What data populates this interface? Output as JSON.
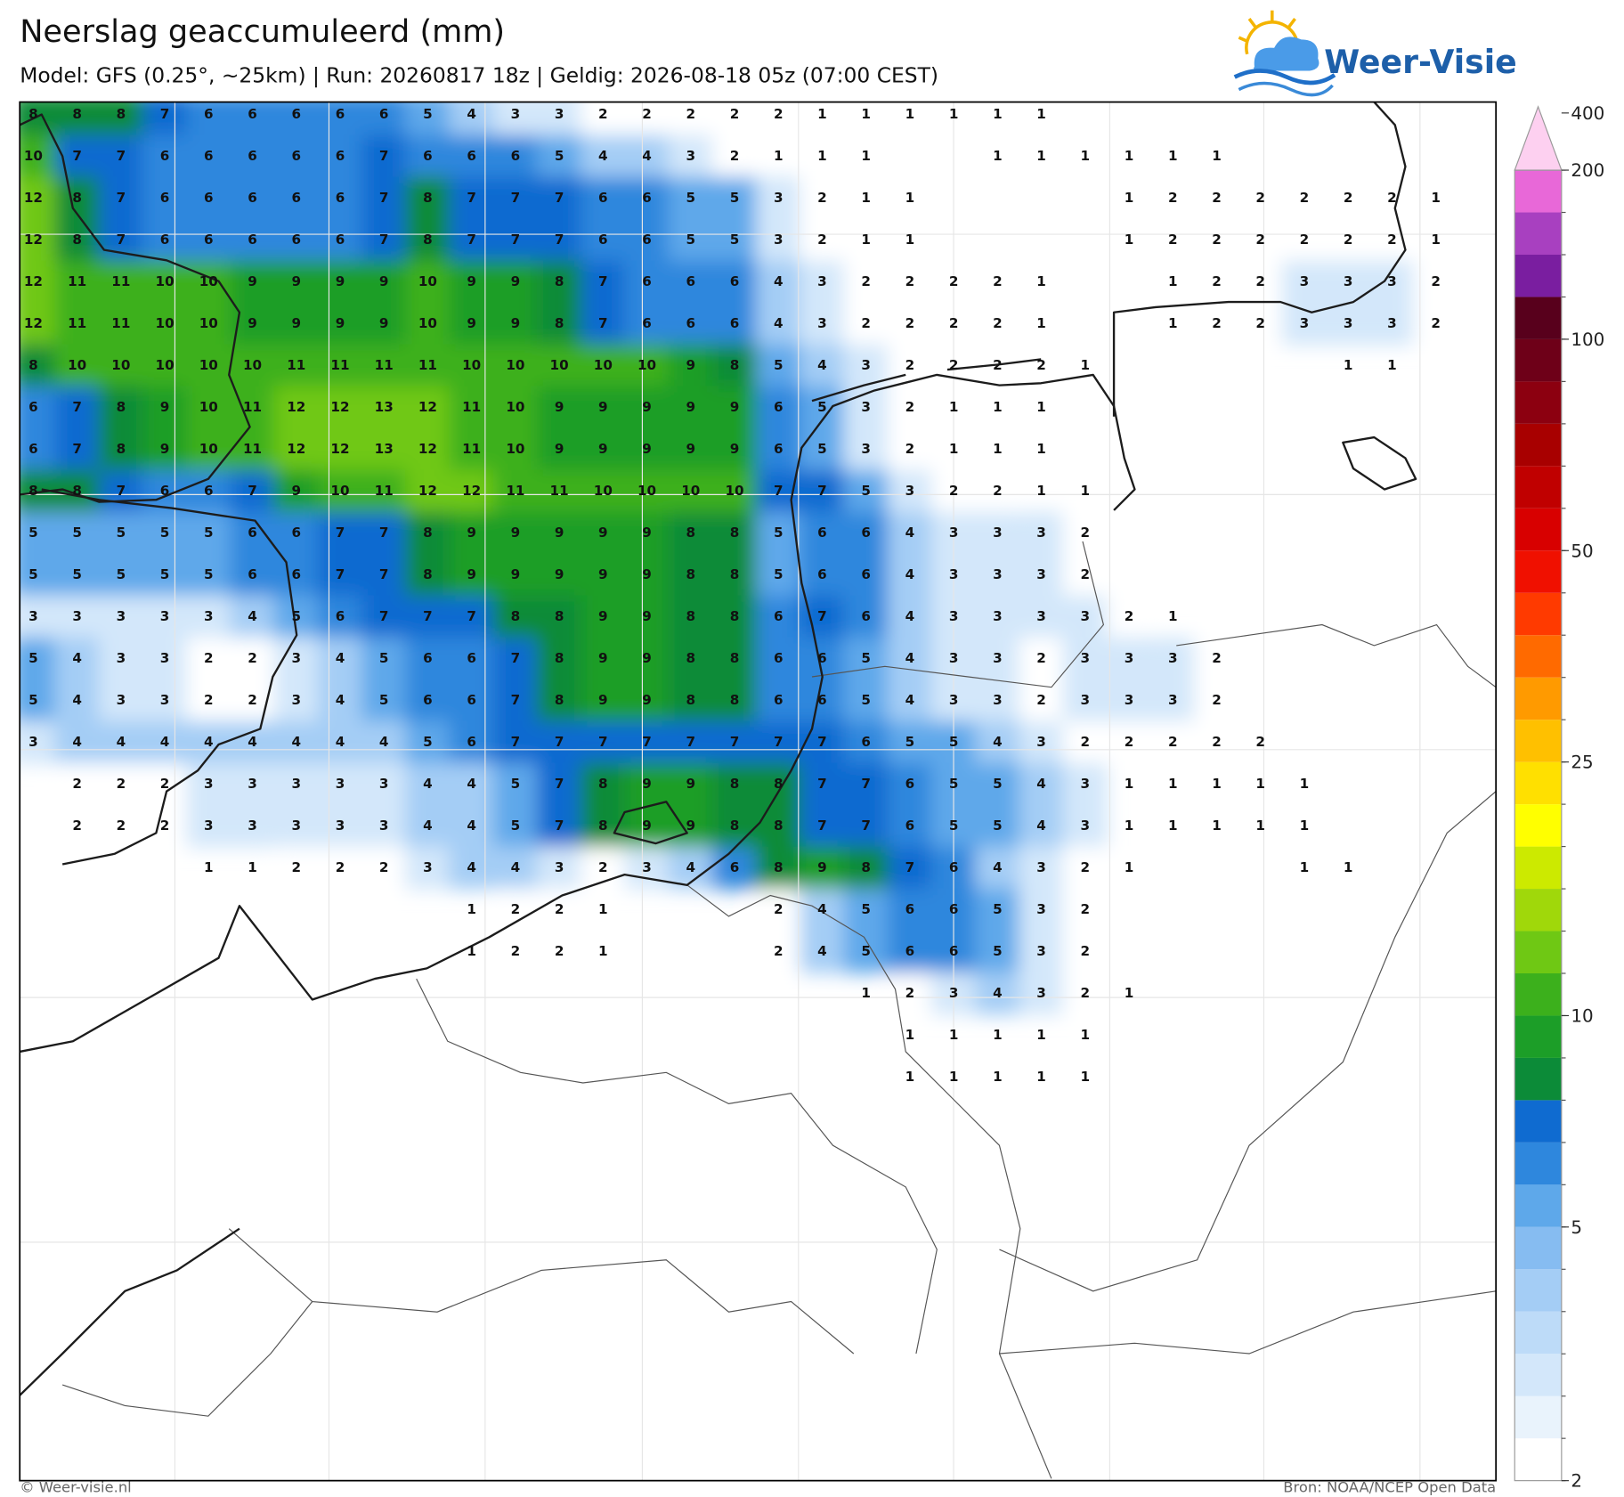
{
  "header": {
    "title": "Neerslag geaccumuleerd (mm)",
    "subtitle": "Model: GFS (0.25°, ~25km)  |  Run: 20260817 18z  |  Geldig: 2026-08-18 05z (07:00 CEST)"
  },
  "logo": {
    "text": "Weer-Visie"
  },
  "map": {
    "grid_values": [
      [
        8,
        8,
        8,
        7,
        6,
        6,
        6,
        6,
        6,
        5,
        4,
        3,
        3,
        2,
        2,
        2,
        2,
        2,
        1,
        1,
        1,
        1,
        1,
        1,
        null,
        null,
        null,
        null,
        null,
        null,
        null,
        null,
        null
      ],
      [
        10,
        7,
        7,
        6,
        6,
        6,
        6,
        6,
        7,
        6,
        6,
        6,
        5,
        4,
        4,
        3,
        2,
        1,
        1,
        1,
        null,
        null,
        1,
        1,
        1,
        1,
        1,
        1,
        null,
        null,
        null,
        null,
        null
      ],
      [
        12,
        8,
        7,
        6,
        6,
        6,
        6,
        6,
        7,
        8,
        7,
        7,
        7,
        6,
        6,
        5,
        5,
        3,
        2,
        1,
        1,
        null,
        null,
        null,
        null,
        1,
        2,
        2,
        2,
        2,
        2,
        2,
        1
      ],
      [
        12,
        8,
        7,
        6,
        6,
        6,
        6,
        6,
        7,
        8,
        7,
        7,
        7,
        6,
        6,
        5,
        5,
        3,
        2,
        1,
        1,
        null,
        null,
        null,
        null,
        1,
        2,
        2,
        2,
        2,
        2,
        2,
        1
      ],
      [
        12,
        11,
        11,
        10,
        10,
        9,
        9,
        9,
        9,
        10,
        9,
        9,
        8,
        7,
        6,
        6,
        6,
        4,
        3,
        2,
        2,
        2,
        2,
        1,
        null,
        null,
        1,
        2,
        2,
        3,
        3,
        3,
        2
      ],
      [
        12,
        11,
        11,
        10,
        10,
        9,
        9,
        9,
        9,
        10,
        9,
        9,
        8,
        7,
        6,
        6,
        6,
        4,
        3,
        2,
        2,
        2,
        2,
        1,
        null,
        null,
        1,
        2,
        2,
        3,
        3,
        3,
        2
      ],
      [
        8,
        10,
        10,
        10,
        10,
        10,
        11,
        11,
        11,
        11,
        10,
        10,
        10,
        10,
        10,
        9,
        8,
        5,
        4,
        3,
        2,
        2,
        2,
        2,
        1,
        null,
        null,
        null,
        null,
        null,
        1,
        1,
        null
      ],
      [
        6,
        7,
        8,
        9,
        10,
        11,
        12,
        12,
        13,
        12,
        11,
        10,
        9,
        9,
        9,
        9,
        9,
        6,
        5,
        3,
        2,
        1,
        1,
        1,
        null,
        null,
        null,
        null,
        null,
        null,
        null,
        null,
        null
      ],
      [
        6,
        7,
        8,
        9,
        10,
        11,
        12,
        12,
        13,
        12,
        11,
        10,
        9,
        9,
        9,
        9,
        9,
        6,
        5,
        3,
        2,
        1,
        1,
        1,
        null,
        null,
        null,
        null,
        null,
        null,
        null,
        null,
        null
      ],
      [
        8,
        8,
        7,
        6,
        6,
        7,
        9,
        10,
        11,
        12,
        12,
        11,
        11,
        10,
        10,
        10,
        10,
        7,
        7,
        5,
        3,
        2,
        2,
        1,
        1,
        null,
        null,
        null,
        null,
        null,
        null,
        null,
        null
      ],
      [
        5,
        5,
        5,
        5,
        5,
        6,
        6,
        7,
        7,
        8,
        9,
        9,
        9,
        9,
        9,
        8,
        8,
        5,
        6,
        6,
        4,
        3,
        3,
        3,
        2,
        null,
        null,
        null,
        null,
        null,
        null,
        null,
        null
      ],
      [
        5,
        5,
        5,
        5,
        5,
        6,
        6,
        7,
        7,
        8,
        9,
        9,
        9,
        9,
        9,
        8,
        8,
        5,
        6,
        6,
        4,
        3,
        3,
        3,
        2,
        null,
        null,
        null,
        null,
        null,
        null,
        null,
        null
      ],
      [
        3,
        3,
        3,
        3,
        3,
        4,
        5,
        6,
        7,
        7,
        7,
        8,
        8,
        9,
        9,
        8,
        8,
        6,
        7,
        6,
        4,
        3,
        3,
        3,
        3,
        2,
        1,
        null,
        null,
        null,
        null,
        null,
        null
      ],
      [
        5,
        4,
        3,
        3,
        2,
        2,
        3,
        4,
        5,
        6,
        6,
        7,
        8,
        9,
        9,
        8,
        8,
        6,
        6,
        5,
        4,
        3,
        3,
        2,
        3,
        3,
        3,
        2,
        null,
        null,
        null,
        null,
        null
      ],
      [
        5,
        4,
        3,
        3,
        2,
        2,
        3,
        4,
        5,
        6,
        6,
        7,
        8,
        9,
        9,
        8,
        8,
        6,
        6,
        5,
        4,
        3,
        3,
        2,
        3,
        3,
        3,
        2,
        null,
        null,
        null,
        null,
        null
      ],
      [
        3,
        4,
        4,
        4,
        4,
        4,
        4,
        4,
        4,
        5,
        6,
        7,
        7,
        7,
        7,
        7,
        7,
        7,
        7,
        6,
        5,
        5,
        4,
        3,
        2,
        2,
        2,
        2,
        2,
        null,
        null,
        null,
        null
      ],
      [
        null,
        2,
        2,
        2,
        3,
        3,
        3,
        3,
        3,
        4,
        4,
        5,
        7,
        8,
        9,
        9,
        8,
        8,
        7,
        7,
        6,
        5,
        5,
        4,
        3,
        1,
        1,
        1,
        1,
        1,
        null,
        null,
        null
      ],
      [
        null,
        2,
        2,
        2,
        3,
        3,
        3,
        3,
        3,
        4,
        4,
        5,
        7,
        8,
        9,
        9,
        8,
        8,
        7,
        7,
        6,
        5,
        5,
        4,
        3,
        1,
        1,
        1,
        1,
        1,
        null,
        null,
        null
      ],
      [
        null,
        null,
        null,
        null,
        1,
        1,
        2,
        2,
        2,
        3,
        4,
        4,
        3,
        2,
        3,
        4,
        6,
        8,
        9,
        8,
        7,
        6,
        4,
        3,
        2,
        1,
        null,
        null,
        null,
        1,
        1,
        null,
        null
      ],
      [
        null,
        null,
        null,
        null,
        null,
        null,
        null,
        null,
        null,
        null,
        1,
        2,
        2,
        1,
        null,
        null,
        null,
        2,
        4,
        5,
        6,
        6,
        5,
        3,
        2,
        null,
        null,
        null,
        null,
        null,
        null,
        null,
        null
      ],
      [
        null,
        null,
        null,
        null,
        null,
        null,
        null,
        null,
        null,
        null,
        1,
        2,
        2,
        1,
        null,
        null,
        null,
        2,
        4,
        5,
        6,
        6,
        5,
        3,
        2,
        null,
        null,
        null,
        null,
        null,
        null,
        null,
        null
      ],
      [
        null,
        null,
        null,
        null,
        null,
        null,
        null,
        null,
        null,
        null,
        null,
        null,
        null,
        null,
        null,
        null,
        null,
        null,
        null,
        1,
        2,
        3,
        4,
        3,
        2,
        1,
        null,
        null,
        null,
        null,
        null,
        null,
        null
      ],
      [
        null,
        null,
        null,
        null,
        null,
        null,
        null,
        null,
        null,
        null,
        null,
        null,
        null,
        null,
        null,
        null,
        null,
        null,
        null,
        null,
        1,
        1,
        1,
        1,
        1,
        null,
        null,
        null,
        null,
        null,
        null,
        null,
        null
      ],
      [
        null,
        null,
        null,
        null,
        null,
        null,
        null,
        null,
        null,
        null,
        null,
        null,
        null,
        null,
        null,
        null,
        null,
        null,
        null,
        null,
        1,
        1,
        1,
        1,
        1,
        null,
        null,
        null,
        null,
        null,
        null,
        null,
        null
      ]
    ]
  },
  "colorbar": {
    "levels": [
      2,
      2.5,
      3,
      3.5,
      4,
      4.5,
      5,
      6,
      7,
      8,
      9,
      10,
      12,
      14,
      16,
      18,
      20,
      25,
      30,
      35,
      40,
      45,
      50,
      60,
      70,
      80,
      90,
      100,
      125,
      150,
      175,
      200,
      400
    ],
    "colors": [
      "#ffffff",
      "#e9f3fc",
      "#d3e7fa",
      "#bddbf8",
      "#a4cdf5",
      "#86bcf1",
      "#5ea8ea",
      "#2e87dd",
      "#0f6bd0",
      "#0c8b38",
      "#1c9e28",
      "#3cb01c",
      "#6fc814",
      "#a0d80a",
      "#ccea00",
      "#ffff00",
      "#ffe000",
      "#ffc000",
      "#ff9a00",
      "#ff6a00",
      "#ff3a00",
      "#f01000",
      "#d80000",
      "#c00000",
      "#a80000",
      "#8c0010",
      "#6e0018",
      "#58001c",
      "#7a1ea0",
      "#a840c0",
      "#e868d8",
      "#fdd0f0"
    ],
    "ticks": [
      2,
      5,
      10,
      25,
      50,
      100,
      200,
      400
    ]
  },
  "footer": {
    "left": "© Weer-visie.nl",
    "right": "Bron: NOAA/NCEP Open Data"
  }
}
